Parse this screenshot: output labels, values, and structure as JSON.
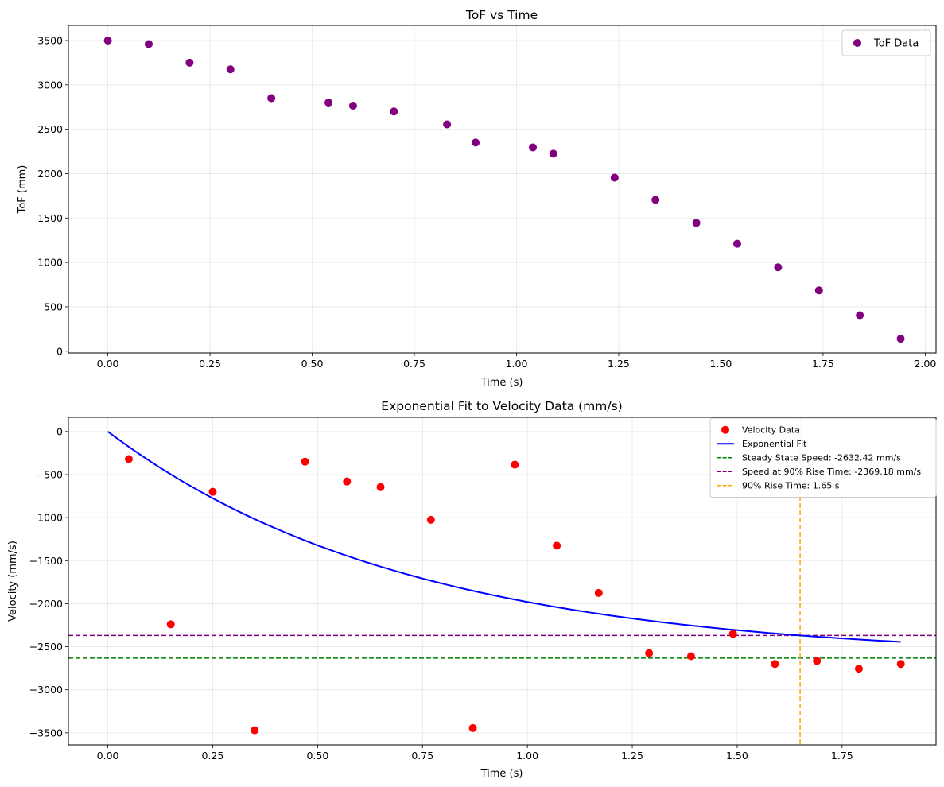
{
  "chart_data": [
    {
      "type": "scatter",
      "title": "ToF vs Time",
      "xlabel": "Time (s)",
      "ylabel": "ToF (mm)",
      "xlim": [
        -0.0965,
        2.0265
      ],
      "ylim": [
        -20,
        3670
      ],
      "xticks": [
        0.0,
        0.25,
        0.5,
        0.75,
        1.0,
        1.25,
        1.5,
        1.75,
        2.0
      ],
      "xtick_labels": [
        "0.00",
        "0.25",
        "0.50",
        "0.75",
        "1.00",
        "1.25",
        "1.50",
        "1.75",
        "2.00"
      ],
      "yticks": [
        0,
        500,
        1000,
        1500,
        2000,
        2500,
        3000,
        3500
      ],
      "ytick_labels": [
        "0",
        "500",
        "1000",
        "1500",
        "2000",
        "2500",
        "3000",
        "3500"
      ],
      "grid": true,
      "legend": {
        "position": "top-right",
        "entries": [
          {
            "label": "ToF Data",
            "color": "#800080",
            "kind": "marker"
          }
        ]
      },
      "series": [
        {
          "name": "ToF Data",
          "color": "#800080",
          "x": [
            0.0,
            0.1,
            0.2,
            0.3,
            0.4,
            0.54,
            0.6,
            0.7,
            0.83,
            0.9,
            1.04,
            1.09,
            1.24,
            1.34,
            1.44,
            1.54,
            1.64,
            1.74,
            1.84,
            1.94
          ],
          "y": [
            3500,
            3460,
            3250,
            3175,
            2850,
            2800,
            2765,
            2700,
            2555,
            2350,
            2295,
            2225,
            1955,
            1705,
            1445,
            1210,
            945,
            685,
            405,
            140
          ]
        }
      ]
    },
    {
      "type": "scatter",
      "title": "Exponential Fit to Velocity Data (mm/s)",
      "xlabel": "Time (s)",
      "ylabel": "Velocity (mm/s)",
      "xlim": [
        -0.094,
        1.974
      ],
      "ylim": [
        -3640,
        165
      ],
      "xticks": [
        0.0,
        0.25,
        0.5,
        0.75,
        1.0,
        1.25,
        1.5,
        1.75
      ],
      "xtick_labels": [
        "0.00",
        "0.25",
        "0.50",
        "0.75",
        "1.00",
        "1.25",
        "1.50",
        "1.75"
      ],
      "yticks": [
        0,
        -500,
        -1000,
        -1500,
        -2000,
        -2500,
        -3000,
        -3500
      ],
      "ytick_labels": [
        "0",
        "−500",
        "−1000",
        "−1500",
        "−2000",
        "−2500",
        "−3000",
        "−3500"
      ],
      "grid": true,
      "legend": {
        "position": "top-right",
        "entries": [
          {
            "label": "Velocity Data",
            "color": "#ff0000",
            "kind": "marker"
          },
          {
            "label": "Exponential Fit",
            "color": "#0000ff",
            "kind": "line"
          },
          {
            "label": "Steady State Speed: -2632.42 mm/s",
            "color": "#008000",
            "kind": "dashed"
          },
          {
            "label": "Speed at 90% Rise Time: -2369.18 mm/s",
            "color": "#800080",
            "kind": "dashed"
          },
          {
            "label": "90% Rise Time: 1.65 s",
            "color": "#ffa500",
            "kind": "dashed"
          }
        ]
      },
      "series": [
        {
          "name": "Velocity Data",
          "color": "#ff0000",
          "x": [
            0.05,
            0.15,
            0.25,
            0.35,
            0.47,
            0.57,
            0.65,
            0.77,
            0.87,
            0.97,
            1.07,
            1.17,
            1.29,
            1.39,
            1.49,
            1.59,
            1.69,
            1.79,
            1.89
          ],
          "y": [
            -320,
            -2240,
            -700,
            -3470,
            -350,
            -580,
            -645,
            -1025,
            -3445,
            -385,
            -1325,
            -1875,
            -2575,
            -2610,
            -2350,
            -2700,
            -2665,
            -2755,
            -2700
          ]
        },
        {
          "name": "Exponential Fit",
          "color": "#0000ff",
          "model": "y = steady_state * (1 - exp(-x / tau))",
          "steady_state": -2632.42,
          "tau": 0.717,
          "x_range": [
            0.0,
            1.89
          ]
        }
      ],
      "reference_lines": [
        {
          "name": "Steady State Speed",
          "orientation": "horizontal",
          "value": -2632.42,
          "color": "#008000"
        },
        {
          "name": "Speed at 90% Rise Time",
          "orientation": "horizontal",
          "value": -2369.18,
          "color": "#800080"
        },
        {
          "name": "90% Rise Time",
          "orientation": "vertical",
          "value": 1.65,
          "color": "#ffa500"
        }
      ]
    }
  ]
}
